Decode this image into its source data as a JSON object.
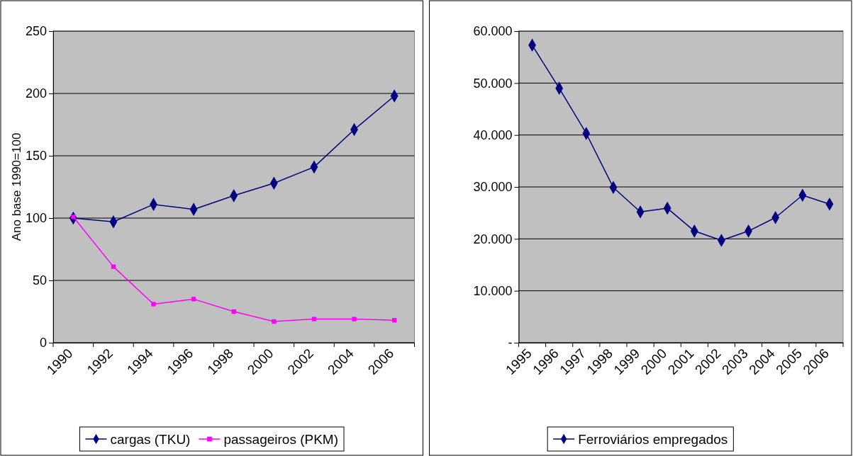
{
  "chart_data": [
    {
      "type": "line",
      "categories": [
        "1990",
        "1992",
        "1994",
        "1996",
        "1998",
        "2000",
        "2002",
        "2004",
        "2006"
      ],
      "ylabel": "Ano base 1990=100",
      "ylim": [
        0,
        250
      ],
      "yticks": [
        0,
        50,
        100,
        150,
        200,
        250
      ],
      "grid": "y",
      "legend": "bottom",
      "series": [
        {
          "name": "cargas (TKU)",
          "color": "#000080",
          "marker": "diamond",
          "values": [
            100,
            97,
            111,
            107,
            118,
            128,
            141,
            171,
            198
          ]
        },
        {
          "name": "passageiros (PKM)",
          "color": "#ff00ff",
          "marker": "square",
          "values": [
            101,
            61,
            31,
            35,
            25,
            17,
            19,
            19,
            18
          ]
        }
      ]
    },
    {
      "type": "line",
      "categories": [
        "1995",
        "1996",
        "1997",
        "1998",
        "1999",
        "2000",
        "2001",
        "2002",
        "2003",
        "2004",
        "2005",
        "2006"
      ],
      "ylim": [
        0,
        60000
      ],
      "yticks": [
        {
          "value": 0,
          "label": "-"
        },
        {
          "value": 10000,
          "label": "10.000"
        },
        {
          "value": 20000,
          "label": "20.000"
        },
        {
          "value": 30000,
          "label": "30.000"
        },
        {
          "value": 40000,
          "label": "40.000"
        },
        {
          "value": 50000,
          "label": "50.000"
        },
        {
          "value": 60000,
          "label": "60.000"
        }
      ],
      "grid": "y",
      "legend": "bottom",
      "series": [
        {
          "name": "Ferroviários empregados",
          "color": "#000080",
          "marker": "diamond",
          "values": [
            57300,
            49000,
            40300,
            29900,
            25200,
            25900,
            21500,
            19700,
            21500,
            24100,
            28400,
            26700
          ]
        }
      ]
    }
  ]
}
